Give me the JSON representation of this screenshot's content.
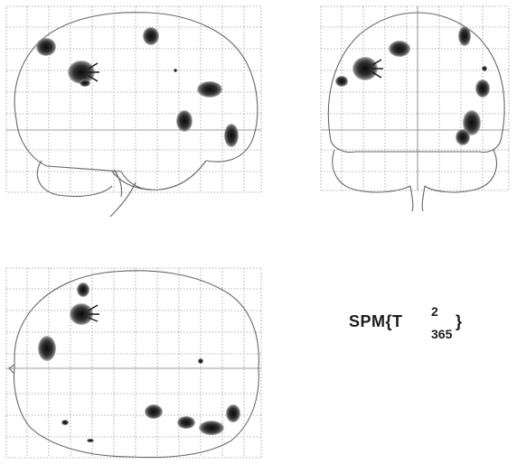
{
  "statistic_label": {
    "prefix": "SPM{T",
    "superscript": "2",
    "subscript": "365",
    "suffix": "}"
  },
  "colors": {
    "blob_core": "#0b0b0b",
    "blob_edge": "#8a8a8a",
    "grid": "#9a9a9a",
    "outline": "#666666"
  }
}
